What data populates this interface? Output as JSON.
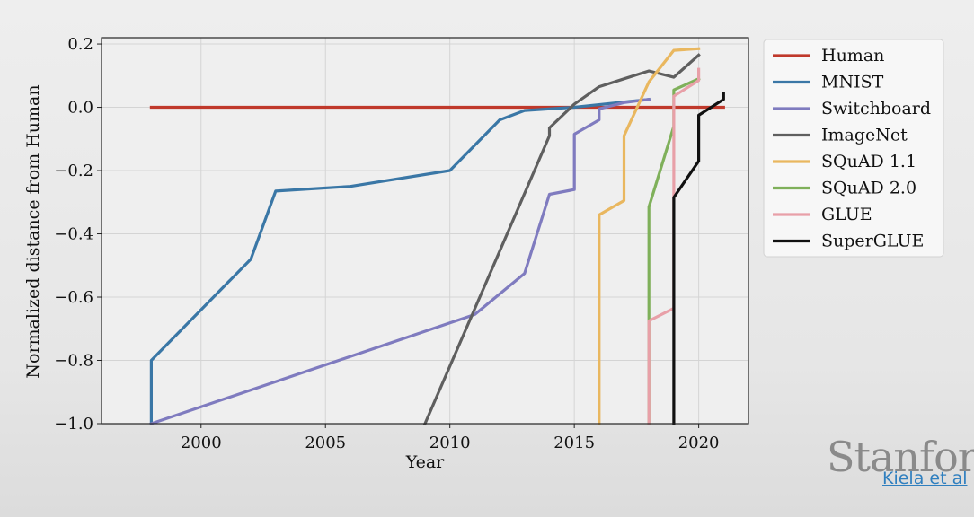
{
  "chart_data": {
    "type": "line",
    "title": "",
    "xlabel": "Year",
    "ylabel": "Normalized distance from Human",
    "xlim": [
      1996,
      2022
    ],
    "ylim": [
      -1.0,
      0.22
    ],
    "xticks": [
      "2000",
      "2005",
      "2010",
      "2015",
      "2020"
    ],
    "yticks": [
      "0.2",
      "0.0",
      "−0.2",
      "−0.4",
      "−0.6",
      "−0.8",
      "−1.0"
    ],
    "grid": true,
    "legend_position": "right-outside-top",
    "series": [
      {
        "name": "Human",
        "color": "#c0392b",
        "points": [
          [
            1998,
            0.0
          ],
          [
            2021,
            0.0
          ]
        ]
      },
      {
        "name": "MNIST",
        "color": "#3a77a6",
        "points": [
          [
            1998,
            -1.0
          ],
          [
            1998,
            -0.8
          ],
          [
            2002,
            -0.48
          ],
          [
            2003,
            -0.265
          ],
          [
            2006,
            -0.25
          ],
          [
            2010,
            -0.2
          ],
          [
            2012,
            -0.04
          ],
          [
            2013,
            -0.01
          ],
          [
            2015,
            0.0
          ],
          [
            2018,
            0.025
          ]
        ]
      },
      {
        "name": "Switchboard",
        "color": "#7f7bbf",
        "points": [
          [
            1998,
            -1.0
          ],
          [
            2011,
            -0.655
          ],
          [
            2013,
            -0.525
          ],
          [
            2014,
            -0.275
          ],
          [
            2015,
            -0.26
          ],
          [
            2015,
            -0.085
          ],
          [
            2016,
            -0.04
          ],
          [
            2016,
            -0.005
          ],
          [
            2017,
            0.015
          ],
          [
            2018,
            0.025
          ]
        ]
      },
      {
        "name": "ImageNet",
        "color": "#5f5f5f",
        "points": [
          [
            2009,
            -1.0
          ],
          [
            2012,
            -0.455
          ],
          [
            2014,
            -0.09
          ],
          [
            2014,
            -0.065
          ],
          [
            2015,
            0.01
          ],
          [
            2016,
            0.065
          ],
          [
            2017,
            0.09
          ],
          [
            2018,
            0.115
          ],
          [
            2019,
            0.095
          ],
          [
            2020,
            0.165
          ]
        ]
      },
      {
        "name": "SQuAD 1.1",
        "color": "#e9b75f",
        "points": [
          [
            2016,
            -1.0
          ],
          [
            2016,
            -0.34
          ],
          [
            2017,
            -0.295
          ],
          [
            2017,
            -0.09
          ],
          [
            2018,
            0.08
          ],
          [
            2019,
            0.18
          ],
          [
            2020,
            0.185
          ]
        ]
      },
      {
        "name": "SQuAD 2.0",
        "color": "#7fb05a",
        "points": [
          [
            2018,
            -1.0
          ],
          [
            2018,
            -0.315
          ],
          [
            2019,
            -0.06
          ],
          [
            2019,
            0.055
          ],
          [
            2020,
            0.09
          ]
        ]
      },
      {
        "name": "GLUE",
        "color": "#e8a0a8",
        "points": [
          [
            2018,
            -1.0
          ],
          [
            2018,
            -0.675
          ],
          [
            2019,
            -0.635
          ],
          [
            2019,
            0.035
          ],
          [
            2020,
            0.085
          ],
          [
            2020,
            0.12
          ]
        ]
      },
      {
        "name": "SuperGLUE",
        "color": "#111111",
        "points": [
          [
            2019,
            -1.0
          ],
          [
            2019,
            -0.285
          ],
          [
            2020,
            -0.17
          ],
          [
            2020,
            -0.025
          ],
          [
            2021,
            0.025
          ],
          [
            2021,
            0.045
          ]
        ]
      }
    ]
  },
  "branding": {
    "logo_text": "Stanfor",
    "citation": "Kiela et al"
  }
}
